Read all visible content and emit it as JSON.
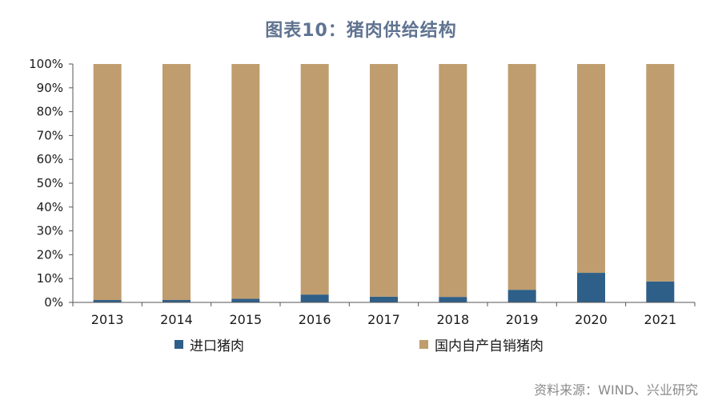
{
  "title": "图表10：猪肉供给结构",
  "source": "资料来源：WIND、兴业研究",
  "colors": {
    "imported": "#2e5f89",
    "domestic": "#bf9d6e",
    "title": "#5f7390"
  },
  "chart_data": {
    "type": "bar",
    "stacked": true,
    "title": "图表10：猪肉供给结构",
    "xlabel": "",
    "ylabel": "",
    "ylim": [
      0,
      100
    ],
    "yticks": [
      "0%",
      "10%",
      "20%",
      "30%",
      "40%",
      "50%",
      "60%",
      "70%",
      "80%",
      "90%",
      "100%"
    ],
    "categories": [
      "2013",
      "2014",
      "2015",
      "2016",
      "2017",
      "2018",
      "2019",
      "2020",
      "2021"
    ],
    "series": [
      {
        "name": "进口猪肉",
        "values": [
          1.0,
          1.0,
          1.5,
          3.3,
          2.4,
          2.3,
          5.3,
          12.4,
          8.8
        ]
      },
      {
        "name": "国内自产自销猪肉",
        "values": [
          99.0,
          99.0,
          98.5,
          96.7,
          97.6,
          97.7,
          94.7,
          87.6,
          91.2
        ]
      }
    ],
    "legend": "bottom",
    "grid": false
  }
}
